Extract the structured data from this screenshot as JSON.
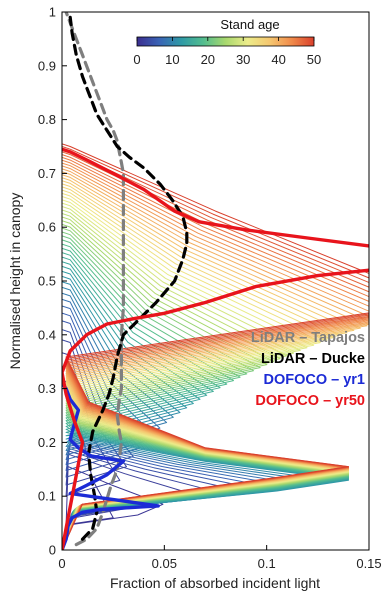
{
  "chart_data": {
    "type": "line",
    "xlabel": "Fraction of absorbed incident light",
    "ylabel": "Normalised height in canopy",
    "xlim": [
      0,
      0.15
    ],
    "ylim": [
      0,
      1
    ],
    "xticks": [
      "0",
      "0.05",
      "0.1",
      "0.15"
    ],
    "yticks": [
      "0",
      "0.1",
      "0.2",
      "0.3",
      "0.4",
      "0.5",
      "0.6",
      "0.7",
      "0.8",
      "0.9",
      "1"
    ],
    "grid": false,
    "legend_position": "right",
    "colorbar": {
      "title": "Stand age",
      "ticks": [
        "0",
        "10",
        "20",
        "30",
        "40",
        "50"
      ],
      "range": [
        0,
        50
      ],
      "colormap": [
        "#3b2e8f",
        "#3a63b5",
        "#2f9aa6",
        "#53bd8f",
        "#a8d86e",
        "#ecec8a",
        "#f5c770",
        "#f08a4a",
        "#d9402c"
      ]
    },
    "series": [
      {
        "name": "LiDAR – Tapajos",
        "color": "#7f7f7f",
        "style": "dashed",
        "x": [
          0.007,
          0.012,
          0.017,
          0.02,
          0.024,
          0.027,
          0.028,
          0.029,
          0.028,
          0.027,
          0.028,
          0.029,
          0.029,
          0.029,
          0.029,
          0.03,
          0.03,
          0.03,
          0.03,
          0.03,
          0.03,
          0.029,
          0.028,
          0.027,
          0.025,
          0.022,
          0.019,
          0.016,
          0.013,
          0.01,
          0.007,
          0.004,
          0.002
        ],
        "y": [
          0.01,
          0.02,
          0.04,
          0.07,
          0.12,
          0.15,
          0.17,
          0.2,
          0.22,
          0.25,
          0.28,
          0.3,
          0.33,
          0.36,
          0.4,
          0.45,
          0.5,
          0.55,
          0.6,
          0.65,
          0.7,
          0.72,
          0.74,
          0.76,
          0.78,
          0.8,
          0.83,
          0.86,
          0.89,
          0.92,
          0.95,
          0.98,
          1.0
        ]
      },
      {
        "name": "LiDAR – Ducke",
        "color": "#000000",
        "style": "dashed",
        "x": [
          0.01,
          0.015,
          0.017,
          0.016,
          0.014,
          0.013,
          0.015,
          0.02,
          0.023,
          0.025,
          0.027,
          0.03,
          0.038,
          0.046,
          0.055,
          0.059,
          0.061,
          0.061,
          0.059,
          0.054,
          0.048,
          0.04,
          0.033,
          0.027,
          0.022,
          0.017,
          0.013,
          0.01,
          0.007,
          0.005,
          0.004
        ],
        "y": [
          0.02,
          0.04,
          0.07,
          0.1,
          0.14,
          0.18,
          0.22,
          0.26,
          0.29,
          0.32,
          0.36,
          0.4,
          0.43,
          0.46,
          0.5,
          0.54,
          0.57,
          0.59,
          0.62,
          0.65,
          0.68,
          0.71,
          0.73,
          0.75,
          0.78,
          0.81,
          0.85,
          0.88,
          0.92,
          0.96,
          0.99
        ]
      },
      {
        "name": "DOFOCO – yr1",
        "color": "#1c2bd6",
        "style": "solid",
        "x": [
          0.0,
          0.002,
          0.003,
          0.005,
          0.01,
          0.018,
          0.03,
          0.047,
          0.004,
          0.012,
          0.022,
          0.03,
          0.014,
          0.008,
          0.004,
          0.005,
          0.008,
          0.004,
          0.002,
          0.0
        ],
        "y": [
          0.0,
          0.02,
          0.045,
          0.06,
          0.07,
          0.075,
          0.078,
          0.082,
          0.105,
          0.12,
          0.14,
          0.165,
          0.175,
          0.19,
          0.205,
          0.22,
          0.26,
          0.28,
          0.3,
          0.31
        ]
      },
      {
        "name": "DOFOCO – yr50",
        "color": "#e8141c",
        "style": "solid",
        "x": [
          0.0,
          0.003,
          0.006,
          0.01,
          0.006,
          0.002,
          0.0,
          0.004,
          0.012,
          0.022,
          0.035,
          0.05,
          0.07,
          0.095,
          0.125,
          0.15,
          null,
          0.15,
          0.12,
          0.09,
          0.067,
          0.055,
          0.04,
          0.025,
          0.012,
          0.004,
          0.0
        ],
        "y": [
          0.0,
          0.06,
          0.12,
          0.2,
          0.24,
          0.29,
          0.33,
          0.37,
          0.4,
          0.42,
          0.43,
          0.44,
          0.46,
          0.49,
          0.51,
          0.52,
          null,
          0.565,
          0.58,
          0.595,
          0.61,
          0.63,
          0.67,
          0.7,
          0.725,
          0.74,
          0.745
        ]
      }
    ]
  }
}
